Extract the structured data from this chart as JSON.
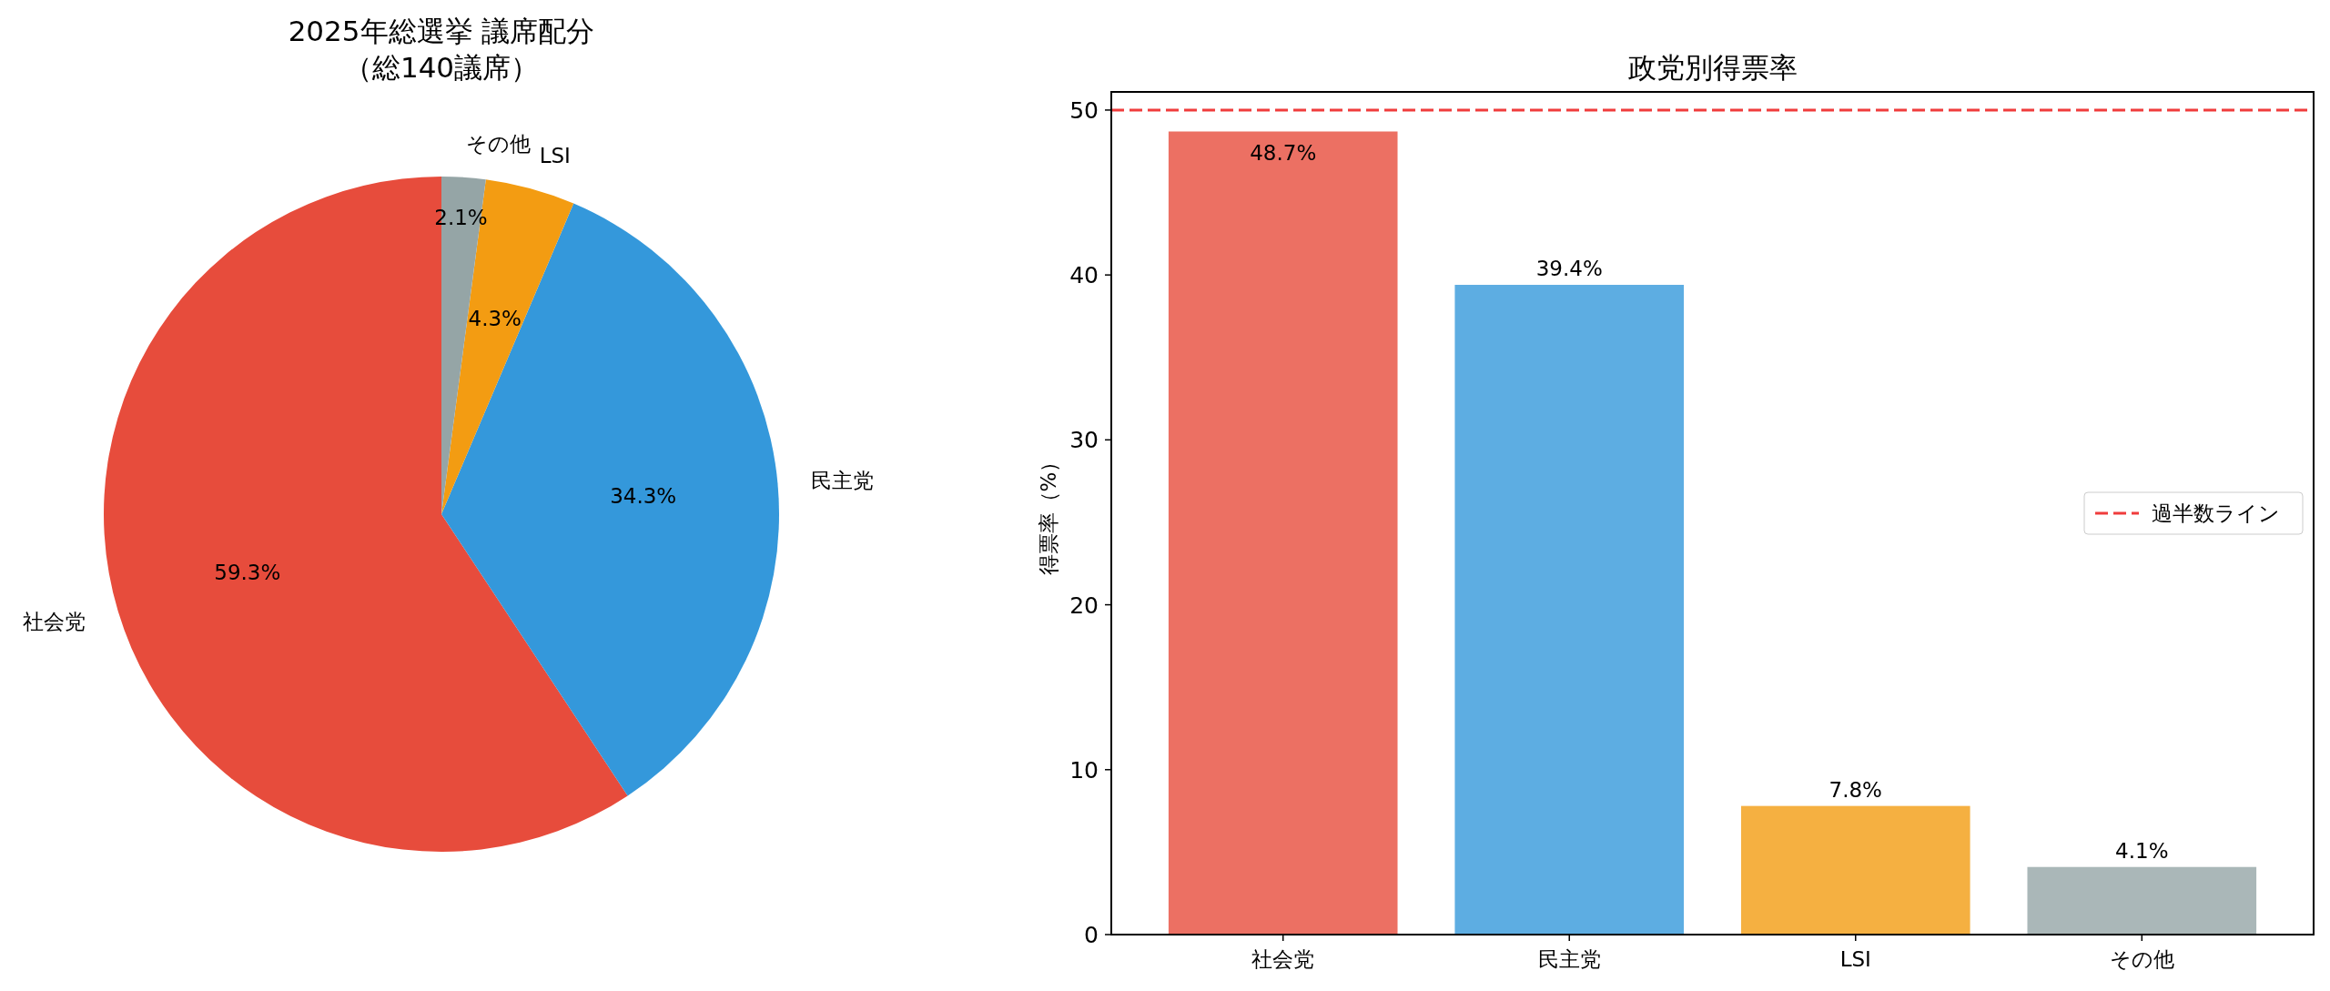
{
  "chart_data": [
    {
      "type": "pie",
      "title": "2025年総選挙 議席配分",
      "subtitle": "（総140議席）",
      "categories": [
        "社会党",
        "民主党",
        "LSI",
        "その他"
      ],
      "values": [
        59.3,
        34.3,
        4.3,
        2.1
      ],
      "value_labels": [
        "59.3%",
        "34.3%",
        "4.3%",
        "2.1%"
      ],
      "colors": [
        "#e74c3c",
        "#3498db",
        "#f39c12",
        "#95a5a6"
      ]
    },
    {
      "type": "bar",
      "title": "政党別得票率",
      "ylabel": "得票率（%）",
      "categories": [
        "社会党",
        "民主党",
        "LSI",
        "その他"
      ],
      "values": [
        48.7,
        39.4,
        7.8,
        4.1
      ],
      "value_labels": [
        "48.7%",
        "39.4%",
        "7.8%",
        "4.1%"
      ],
      "colors": [
        "#ec7063",
        "#5dade2",
        "#f5b041",
        "#aab7b8"
      ],
      "ylim": [
        0,
        51.1
      ],
      "yticks": [
        0,
        10,
        20,
        30,
        40,
        50
      ],
      "ref_lines": [
        {
          "axis": "y",
          "value": 50,
          "label": "過半数ライン",
          "color": "#f03c3c",
          "line_style": "dashed"
        }
      ],
      "legend": "center right"
    }
  ]
}
